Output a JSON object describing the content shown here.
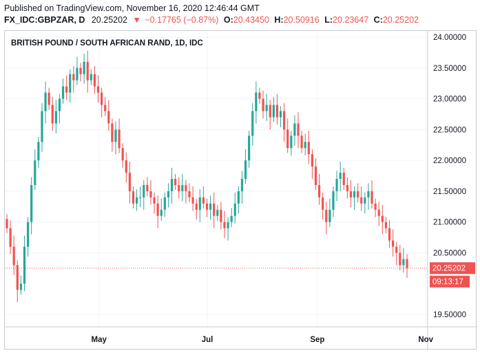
{
  "header": {
    "published": "Published on TradingView.com, November 16, 2020 12:46:44 GMT",
    "symbol": "FX_IDC:GBPZAR, D",
    "last": "20.25202",
    "arrow": "▼",
    "change": "−0.17765 (−0.87%)",
    "o_label": "O:",
    "o_value": "20.43450",
    "h_label": "H:",
    "h_value": "20.50916",
    "l_label": "L:",
    "l_value": "20.23647",
    "c_label": "C:",
    "c_value": "20.25202"
  },
  "colors": {
    "up": "#26a69a",
    "down": "#ef5350",
    "grid": "#f0f3fa",
    "axis": "#c9cbd1"
  },
  "chart_data": {
    "type": "candlestick",
    "title": "BRITISH POUND / SOUTH AFRICAN RAND, 1D, IDC",
    "ylim": [
      19.3,
      24.1
    ],
    "yticks": [
      "24.00000",
      "23.50000",
      "23.00000",
      "22.50000",
      "22.00000",
      "21.50000",
      "21.00000",
      "20.50000",
      "19.50000"
    ],
    "ytick_values": [
      24.0,
      23.5,
      23.0,
      22.5,
      22.0,
      21.5,
      21.0,
      20.5,
      19.5
    ],
    "xticks": [
      "May",
      "Jul",
      "Sep",
      "Nov"
    ],
    "xtick_dates": [
      "2020-05-01",
      "2020-07-01",
      "2020-09-01",
      "2020-11-01"
    ],
    "x_range": [
      "2020-03-09",
      "2020-11-30"
    ],
    "last_price": "20.25202",
    "last_price_value": 20.25202,
    "countdown": "09:13:17",
    "close": [
      20.9,
      20.6,
      20.3,
      19.9,
      20.0,
      20.6,
      21.0,
      21.6,
      22.0,
      22.3,
      22.8,
      23.1,
      22.9,
      22.6,
      22.8,
      23.0,
      23.2,
      23.1,
      23.4,
      23.3,
      23.5,
      23.4,
      23.6,
      23.3,
      23.4,
      23.2,
      23.1,
      22.9,
      22.8,
      22.6,
      22.3,
      22.5,
      22.2,
      22.0,
      21.8,
      21.5,
      21.3,
      21.4,
      21.4,
      21.6,
      21.5,
      21.4,
      21.3,
      21.1,
      21.2,
      21.4,
      21.5,
      21.7,
      21.6,
      21.5,
      21.6,
      21.5,
      21.4,
      21.3,
      21.2,
      21.4,
      21.3,
      21.2,
      21.3,
      21.1,
      21.2,
      21.0,
      20.9,
      21.0,
      21.1,
      21.3,
      21.5,
      21.7,
      22.0,
      22.4,
      22.8,
      23.1,
      23.0,
      22.8,
      22.9,
      22.7,
      22.9,
      22.7,
      22.8,
      22.5,
      22.2,
      22.4,
      22.6,
      22.4,
      22.2,
      22.3,
      22.1,
      21.9,
      21.6,
      21.4,
      21.2,
      21.0,
      21.2,
      21.5,
      21.7,
      21.8,
      21.6,
      21.5,
      21.4,
      21.5,
      21.4,
      21.3,
      21.4,
      21.5,
      21.3,
      21.2,
      21.1,
      21.0,
      20.9,
      20.7,
      20.6,
      20.5,
      20.3,
      20.4,
      20.25202
    ]
  }
}
